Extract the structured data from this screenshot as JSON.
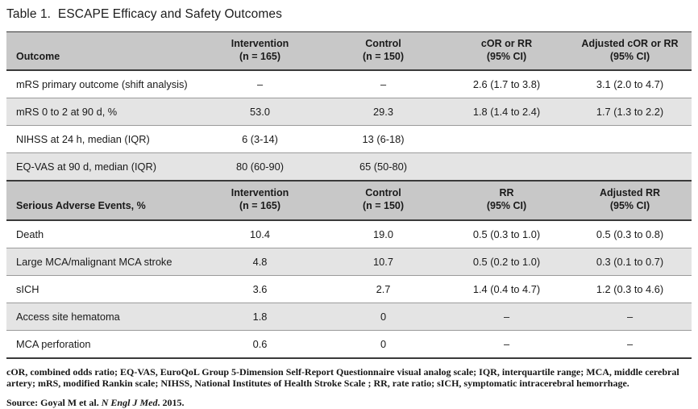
{
  "title": "Table 1.  ESCAPE Efficacy and Safety Outcomes",
  "colors": {
    "header_bg": "#c8c8c8",
    "row_alt_bg": "#e4e4e4",
    "rule_dark": "#3a3a3a",
    "rule_light": "#9b9b9b"
  },
  "table": {
    "sections": [
      {
        "columns": [
          {
            "label": "Outcome",
            "sub": ""
          },
          {
            "label": "Intervention",
            "sub": "(n = 165)"
          },
          {
            "label": "Control",
            "sub": "(n = 150)"
          },
          {
            "label": "cOR or RR",
            "sub": "(95% CI)"
          },
          {
            "label": "Adjusted cOR or RR",
            "sub": "(95% CI)"
          }
        ],
        "rows": [
          {
            "outcome": "mRS primary outcome (shift analysis)",
            "cells": [
              "–",
              "–",
              "2.6 (1.7 to 3.8)",
              "3.1 (2.0 to 4.7)"
            ]
          },
          {
            "outcome": "mRS 0 to 2 at 90 d, %",
            "cells": [
              "53.0",
              "29.3",
              "1.8 (1.4 to 2.4)",
              "1.7 (1.3 to 2.2)"
            ]
          },
          {
            "outcome": "NIHSS at 24 h, median (IQR)",
            "cells": [
              "6 (3-14)",
              "13 (6-18)",
              "",
              ""
            ]
          },
          {
            "outcome": "EQ-VAS at 90 d, median (IQR)",
            "cells": [
              "80 (60-90)",
              "65 (50-80)",
              "",
              ""
            ]
          }
        ]
      },
      {
        "columns": [
          {
            "label": "Serious Adverse Events, %",
            "sub": ""
          },
          {
            "label": "Intervention",
            "sub": "(n = 165)"
          },
          {
            "label": "Control",
            "sub": "(n = 150)"
          },
          {
            "label": "RR",
            "sub": "(95% CI)"
          },
          {
            "label": "Adjusted RR",
            "sub": "(95% CI)"
          }
        ],
        "rows": [
          {
            "outcome": "Death",
            "cells": [
              "10.4",
              "19.0",
              "0.5 (0.3 to 1.0)",
              "0.5 (0.3 to 0.8)"
            ]
          },
          {
            "outcome": "Large MCA/malignant MCA stroke",
            "cells": [
              "4.8",
              "10.7",
              "0.5 (0.2 to 1.0)",
              "0.3 (0.1 to 0.7)"
            ]
          },
          {
            "outcome": "sICH",
            "cells": [
              "3.6",
              "2.7",
              "1.4 (0.4 to 4.7)",
              "1.2 (0.3 to 4.6)"
            ]
          },
          {
            "outcome": "Access site hematoma",
            "cells": [
              "1.8",
              "0",
              "–",
              "–"
            ]
          },
          {
            "outcome": "MCA perforation",
            "cells": [
              "0.6",
              "0",
              "–",
              "–"
            ]
          }
        ]
      }
    ]
  },
  "footnote": "cOR, combined odds ratio; EQ-VAS, EuroQoL Group 5-Dimension Self-Report Questionnaire visual analog scale; IQR, interquartile range; MCA, middle cerebral artery; mRS, modified Rankin scale; NIHSS, National Institutes of Health Stroke Scale ; RR, rate ratio; sICH, symptomatic intracerebral hemorrhage.",
  "source": {
    "prefix": "Source: Goyal M et al. ",
    "journal": "N Engl J Med",
    "suffix": ". 2015."
  }
}
